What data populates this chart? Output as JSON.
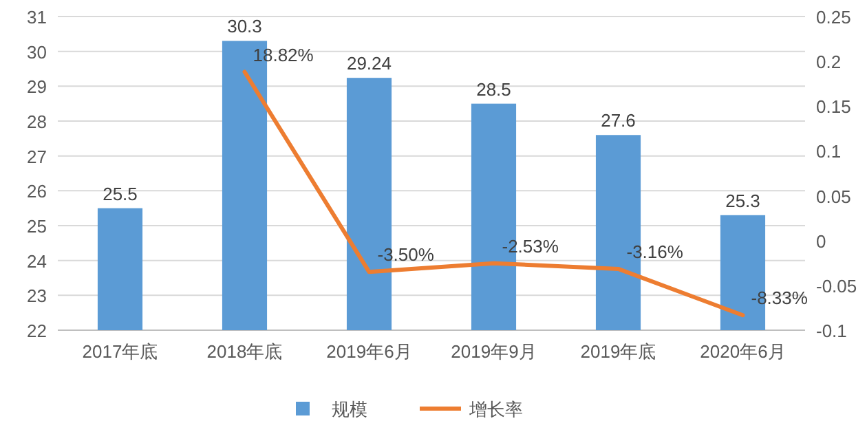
{
  "chart_data": {
    "type": "bar",
    "categories": [
      "2017年底",
      "2018年底",
      "2019年6月",
      "2019年9月",
      "2019年底",
      "2020年6月"
    ],
    "series": [
      {
        "name": "规模",
        "color": "#5b9bd5",
        "values": [
          25.5,
          30.3,
          29.24,
          28.5,
          27.6,
          25.3
        ],
        "value_labels": [
          "25.5",
          "30.3",
          "29.24",
          "28.5",
          "27.6",
          "25.3"
        ]
      },
      {
        "name": "增长率",
        "type": "line",
        "axis": "y2",
        "color": "#ed7d31",
        "values": [
          null,
          0.1882,
          -0.035,
          -0.0253,
          -0.0316,
          -0.0833
        ],
        "value_labels": [
          null,
          "18.82%",
          "-3.50%",
          "-2.53%",
          "-3.16%",
          "-8.33%"
        ]
      }
    ],
    "ylim": [
      22,
      31
    ],
    "yticks": [
      22,
      23,
      24,
      25,
      26,
      27,
      28,
      29,
      30,
      31
    ],
    "y2lim": [
      -0.1,
      0.25
    ],
    "y2ticks": [
      -0.1,
      -0.05,
      0,
      0.05,
      0.1,
      0.15,
      0.2,
      0.25
    ],
    "grid": "y",
    "legend": "bottom",
    "marker": "none",
    "line_style": "solid"
  }
}
